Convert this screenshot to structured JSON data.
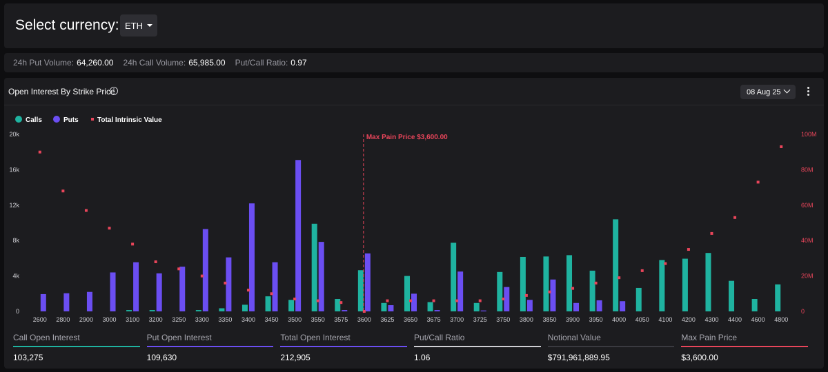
{
  "header": {
    "select_label": "Select currency:",
    "currency": "ETH"
  },
  "stats": [
    {
      "label": "24h Put Volume:",
      "value": "64,260.00"
    },
    {
      "label": "24h Call Volume:",
      "value": "65,985.00"
    },
    {
      "label": "Put/Call Ratio:",
      "value": "0.97"
    }
  ],
  "chart_panel": {
    "title": "Open Interest By Strike Price",
    "info_icon": "info-icon",
    "date": "08 Aug 25"
  },
  "colors": {
    "calls": "#1fb3a0",
    "puts": "#6b4ef2",
    "intrinsic": "#e8455a",
    "grid": "#2a2a2e"
  },
  "chart_data": {
    "type": "bar",
    "legend": {
      "calls": "Calls",
      "puts": "Puts",
      "intrinsic": "Total Intrinsic Value"
    },
    "legend_placement": "top-left",
    "categories": [
      "2600",
      "2800",
      "2900",
      "3000",
      "3100",
      "3200",
      "3250",
      "3300",
      "3350",
      "3400",
      "3450",
      "3500",
      "3550",
      "3575",
      "3600",
      "3625",
      "3650",
      "3675",
      "3700",
      "3725",
      "3750",
      "3800",
      "3850",
      "3900",
      "3950",
      "4000",
      "4050",
      "4100",
      "4200",
      "4300",
      "4400",
      "4600",
      "4800"
    ],
    "series": [
      {
        "name": "Calls",
        "axis": "left",
        "values": [
          0,
          0,
          0,
          0,
          150,
          150,
          0,
          150,
          350,
          750,
          1700,
          1300,
          9900,
          1400,
          4650,
          950,
          4000,
          1050,
          7750,
          950,
          4450,
          6150,
          6200,
          6350,
          4600,
          10400,
          2650,
          5800,
          5950,
          6600,
          3450,
          1400,
          3050
        ]
      },
      {
        "name": "Puts",
        "axis": "left",
        "values": [
          1950,
          2050,
          2200,
          4400,
          5550,
          4300,
          5050,
          9300,
          6100,
          12200,
          5550,
          17100,
          7850,
          150,
          6550,
          700,
          2000,
          150,
          4500,
          100,
          2750,
          1300,
          3600,
          950,
          1250,
          1150,
          0,
          0,
          0,
          0,
          0,
          0,
          0
        ]
      },
      {
        "name": "Total Intrinsic Value",
        "axis": "right",
        "values": [
          90,
          68,
          57,
          47,
          38,
          28,
          24,
          20,
          16,
          12,
          10,
          7,
          6,
          5,
          0,
          6,
          6,
          6,
          6,
          6,
          7,
          9,
          11,
          13,
          16,
          19,
          23,
          27,
          35,
          44,
          53,
          73,
          93
        ]
      }
    ],
    "left_axis": {
      "min": 0,
      "max": 20000,
      "ticks": [
        "0",
        "4k",
        "8k",
        "12k",
        "16k",
        "20k"
      ]
    },
    "right_axis": {
      "min": 0,
      "max": 100,
      "ticks": [
        "0",
        "20M",
        "40M",
        "60M",
        "80M",
        "100M"
      ]
    },
    "max_pain": {
      "strike": "3600",
      "label": "Max Pain Price $3,600.00"
    },
    "grid": false
  },
  "metrics": [
    {
      "label": "Call Open Interest",
      "value": "103,275",
      "color": "#1fb3a0"
    },
    {
      "label": "Put Open Interest",
      "value": "109,630",
      "color": "#6b4ef2"
    },
    {
      "label": "Total Open Interest",
      "value": "212,905",
      "color": "#6b4ef2"
    },
    {
      "label": "Put/Call Ratio",
      "value": "1.06",
      "color": "#cfcfd4"
    },
    {
      "label": "Notional Value",
      "value": "$791,961,889.95",
      "color": "#3a3a40"
    },
    {
      "label": "Max Pain Price",
      "value": "$3,600.00",
      "color": "#e8455a"
    }
  ]
}
